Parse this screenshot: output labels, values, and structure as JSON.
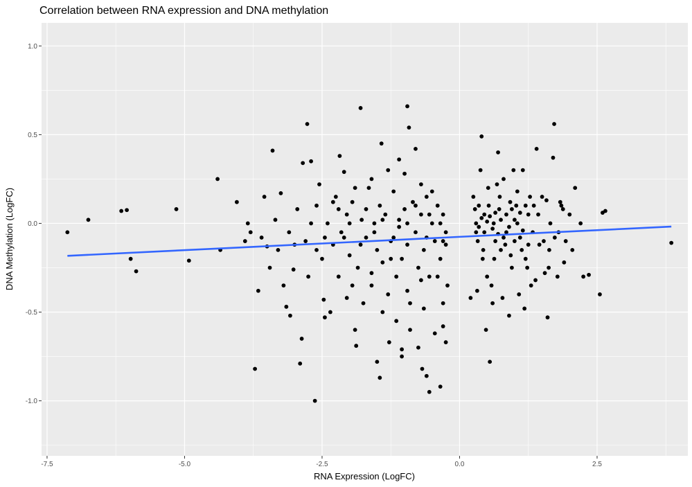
{
  "chart_data": {
    "type": "scatter",
    "title": "Correlation between RNA expression and DNA methylation",
    "xlabel": "RNA Expression (LogFC)",
    "ylabel": "DNA Methylation (LogFC)",
    "xlim": [
      -7.6,
      4.15
    ],
    "ylim": [
      -1.31,
      1.13
    ],
    "x_ticks": [
      -7.5,
      -5.0,
      -2.5,
      0.0,
      2.5
    ],
    "x_tick_labels": [
      "-7.5",
      "-5.0",
      "-2.5",
      "0.0",
      "2.5"
    ],
    "y_ticks": [
      -1.0,
      -0.5,
      0.0,
      0.5,
      1.0
    ],
    "y_tick_labels": [
      "-1.0",
      "-0.5",
      "0.0",
      "0.5",
      "1.0"
    ],
    "grid": true,
    "colors": {
      "panel_background": "#ebebeb",
      "grid_major": "#ffffff",
      "points": "#000000",
      "fit_line": "#3366ff",
      "tick_label": "#4d4d4d"
    },
    "fit_line": {
      "x": [
        -7.13,
        3.85
      ],
      "y": [
        -0.183,
        -0.018
      ]
    },
    "points": [
      [
        -7.13,
        -0.05
      ],
      [
        -6.75,
        0.02
      ],
      [
        -6.15,
        0.07
      ],
      [
        -6.05,
        0.075
      ],
      [
        -5.98,
        -0.2
      ],
      [
        -5.88,
        -0.27
      ],
      [
        -5.15,
        0.08
      ],
      [
        -4.92,
        -0.21
      ],
      [
        -4.4,
        0.25
      ],
      [
        -4.35,
        -0.15
      ],
      [
        -4.05,
        0.12
      ],
      [
        -3.72,
        -0.82
      ],
      [
        -3.66,
        -0.38
      ],
      [
        -3.55,
        0.15
      ],
      [
        -3.4,
        0.41
      ],
      [
        -3.3,
        -0.15
      ],
      [
        -3.2,
        -0.35
      ],
      [
        -3.15,
        -0.47
      ],
      [
        -3.08,
        -0.52
      ],
      [
        -3.02,
        -0.26
      ],
      [
        -2.9,
        -0.79
      ],
      [
        -2.87,
        -0.65
      ],
      [
        -2.85,
        0.34
      ],
      [
        -2.77,
        0.56
      ],
      [
        -2.63,
        -1.0
      ],
      [
        -2.7,
        0.35
      ],
      [
        -2.55,
        0.22
      ],
      [
        -2.47,
        -0.43
      ],
      [
        -2.45,
        -0.53
      ],
      [
        -2.18,
        0.38
      ],
      [
        -2.1,
        0.29
      ],
      [
        -1.8,
        0.65
      ],
      [
        -1.9,
        -0.6
      ],
      [
        -1.88,
        -0.69
      ],
      [
        -1.5,
        -0.78
      ],
      [
        -1.45,
        -0.87
      ],
      [
        -1.42,
        0.45
      ],
      [
        -1.28,
        -0.67
      ],
      [
        -1.1,
        0.36
      ],
      [
        -1.05,
        -0.71
      ],
      [
        -1.05,
        -0.75
      ],
      [
        -0.95,
        0.66
      ],
      [
        -0.92,
        0.54
      ],
      [
        -0.8,
        0.42
      ],
      [
        -0.75,
        -0.7
      ],
      [
        -0.68,
        -0.82
      ],
      [
        -0.6,
        -0.86
      ],
      [
        -0.55,
        -0.95
      ],
      [
        -0.35,
        -0.92
      ],
      [
        -0.3,
        -0.58
      ],
      [
        -0.25,
        -0.67
      ],
      [
        -3.6,
        -0.08
      ],
      [
        -3.45,
        -0.25
      ],
      [
        -3.35,
        0.02
      ],
      [
        -3.25,
        0.17
      ],
      [
        -3.1,
        -0.05
      ],
      [
        -2.95,
        0.08
      ],
      [
        -2.8,
        -0.1
      ],
      [
        -2.75,
        -0.3
      ],
      [
        -2.6,
        0.1
      ],
      [
        -2.5,
        -0.2
      ],
      [
        -2.4,
        0.0
      ],
      [
        -2.3,
        -0.12
      ],
      [
        -2.25,
        0.15
      ],
      [
        -2.2,
        -0.3
      ],
      [
        -2.15,
        -0.05
      ],
      [
        -2.05,
        0.05
      ],
      [
        -2.0,
        -0.18
      ],
      [
        -1.95,
        0.12
      ],
      [
        -1.85,
        -0.25
      ],
      [
        -1.78,
        0.02
      ],
      [
        -1.7,
        -0.08
      ],
      [
        -1.65,
        0.2
      ],
      [
        -1.6,
        -0.35
      ],
      [
        -1.55,
        0.0
      ],
      [
        -1.5,
        -0.15
      ],
      [
        -1.45,
        0.1
      ],
      [
        -1.4,
        -0.22
      ],
      [
        -1.35,
        0.05
      ],
      [
        -1.3,
        -0.4
      ],
      [
        -1.25,
        -0.1
      ],
      [
        -1.2,
        0.18
      ],
      [
        -1.15,
        -0.3
      ],
      [
        -1.1,
        0.02
      ],
      [
        -1.05,
        -0.2
      ],
      [
        -1.0,
        0.08
      ],
      [
        -0.95,
        -0.12
      ],
      [
        -0.9,
        -0.45
      ],
      [
        -0.85,
        0.12
      ],
      [
        -0.8,
        -0.05
      ],
      [
        -0.75,
        -0.25
      ],
      [
        -0.7,
        0.05
      ],
      [
        -0.65,
        -0.15
      ],
      [
        -0.6,
        0.15
      ],
      [
        -0.55,
        -0.3
      ],
      [
        -0.5,
        0.0
      ],
      [
        -0.45,
        -0.1
      ],
      [
        -0.4,
        0.1
      ],
      [
        -0.35,
        -0.2
      ],
      [
        -0.3,
        0.05
      ],
      [
        -0.25,
        -0.05
      ],
      [
        -0.22,
        -0.35
      ],
      [
        -2.35,
        -0.5
      ],
      [
        -2.05,
        -0.42
      ],
      [
        -1.75,
        -0.45
      ],
      [
        -1.4,
        -0.5
      ],
      [
        -1.15,
        -0.55
      ],
      [
        -0.9,
        -0.6
      ],
      [
        -0.65,
        -0.48
      ],
      [
        -0.45,
        -0.62
      ],
      [
        -0.3,
        -0.45
      ],
      [
        -1.9,
        0.2
      ],
      [
        -1.6,
        0.25
      ],
      [
        -1.3,
        0.3
      ],
      [
        -1.0,
        0.28
      ],
      [
        -0.7,
        0.22
      ],
      [
        -0.5,
        0.18
      ],
      [
        -2.6,
        -0.15
      ],
      [
        -2.1,
        -0.08
      ],
      [
        -1.8,
        -0.12
      ],
      [
        -1.55,
        -0.05
      ],
      [
        -1.2,
        -0.08
      ],
      [
        -0.95,
        0.0
      ],
      [
        -0.6,
        -0.08
      ],
      [
        -0.35,
        0.0
      ],
      [
        -3.0,
        -0.12
      ],
      [
        -2.7,
        0.0
      ],
      [
        -2.45,
        -0.08
      ],
      [
        -3.5,
        -0.13
      ],
      [
        -3.8,
        -0.05
      ],
      [
        -3.9,
        -0.1
      ],
      [
        -3.85,
        0.0
      ],
      [
        -2.2,
        0.08
      ],
      [
        -2.0,
        0.0
      ],
      [
        -1.7,
        0.08
      ],
      [
        -1.4,
        0.02
      ],
      [
        -1.1,
        -0.02
      ],
      [
        -0.8,
        0.1
      ],
      [
        -0.55,
        0.05
      ],
      [
        -0.3,
        -0.1
      ],
      [
        -2.3,
        0.12
      ],
      [
        -1.95,
        -0.35
      ],
      [
        -1.6,
        -0.28
      ],
      [
        -1.25,
        -0.2
      ],
      [
        -0.95,
        -0.38
      ],
      [
        -0.7,
        -0.32
      ],
      [
        -0.4,
        -0.3
      ],
      [
        -0.25,
        -0.12
      ],
      [
        0.2,
        -0.42
      ],
      [
        0.25,
        0.15
      ],
      [
        0.3,
        -0.05
      ],
      [
        0.35,
        0.1
      ],
      [
        0.4,
        0.49
      ],
      [
        0.42,
        -0.2
      ],
      [
        0.45,
        0.05
      ],
      [
        0.5,
        -0.3
      ],
      [
        0.52,
        0.2
      ],
      [
        0.55,
        -0.78
      ],
      [
        0.6,
        -0.45
      ],
      [
        0.62,
        0.0
      ],
      [
        0.65,
        -0.1
      ],
      [
        0.7,
        0.4
      ],
      [
        0.72,
        0.08
      ],
      [
        0.75,
        -0.15
      ],
      [
        0.8,
        0.25
      ],
      [
        0.85,
        -0.05
      ],
      [
        0.9,
        -0.52
      ],
      [
        0.92,
        0.12
      ],
      [
        0.95,
        -0.25
      ],
      [
        1.0,
        0.02
      ],
      [
        1.05,
        0.18
      ],
      [
        1.1,
        -0.08
      ],
      [
        1.15,
        0.3
      ],
      [
        1.2,
        -0.2
      ],
      [
        1.25,
        0.05
      ],
      [
        1.3,
        -0.35
      ],
      [
        1.35,
        0.1
      ],
      [
        1.4,
        0.42
      ],
      [
        1.45,
        -0.12
      ],
      [
        1.5,
        0.15
      ],
      [
        1.55,
        -0.28
      ],
      [
        1.6,
        -0.53
      ],
      [
        1.65,
        0.0
      ],
      [
        1.7,
        0.37
      ],
      [
        1.72,
        0.56
      ],
      [
        1.8,
        -0.05
      ],
      [
        1.85,
        0.1
      ],
      [
        1.9,
        -0.22
      ],
      [
        2.0,
        0.05
      ],
      [
        2.05,
        -0.15
      ],
      [
        2.1,
        0.2
      ],
      [
        2.2,
        0.0
      ],
      [
        2.25,
        -0.3
      ],
      [
        2.35,
        -0.29
      ],
      [
        2.55,
        -0.4
      ],
      [
        2.6,
        0.06
      ],
      [
        2.65,
        0.07
      ],
      [
        3.85,
        -0.11
      ],
      [
        0.3,
        0.0
      ],
      [
        0.35,
        -0.02
      ],
      [
        0.4,
        0.03
      ],
      [
        0.45,
        -0.05
      ],
      [
        0.5,
        0.01
      ],
      [
        0.55,
        0.04
      ],
      [
        0.6,
        -0.03
      ],
      [
        0.65,
        0.06
      ],
      [
        0.7,
        -0.06
      ],
      [
        0.75,
        0.02
      ],
      [
        0.8,
        -0.08
      ],
      [
        0.85,
        0.05
      ],
      [
        0.9,
        -0.02
      ],
      [
        0.95,
        0.08
      ],
      [
        1.0,
        -0.1
      ],
      [
        1.05,
        0.0
      ],
      [
        1.1,
        0.06
      ],
      [
        1.15,
        -0.04
      ],
      [
        1.2,
        0.1
      ],
      [
        1.25,
        -0.12
      ],
      [
        0.32,
        -0.38
      ],
      [
        0.48,
        -0.6
      ],
      [
        0.58,
        -0.35
      ],
      [
        0.78,
        -0.42
      ],
      [
        1.08,
        -0.4
      ],
      [
        1.18,
        -0.48
      ],
      [
        1.38,
        -0.32
      ],
      [
        1.62,
        -0.25
      ],
      [
        1.78,
        -0.3
      ],
      [
        0.38,
        0.3
      ],
      [
        0.68,
        0.22
      ],
      [
        0.98,
        0.3
      ],
      [
        1.28,
        0.15
      ],
      [
        1.58,
        0.13
      ],
      [
        1.88,
        0.08
      ],
      [
        0.28,
        0.08
      ],
      [
        0.33,
        -0.1
      ],
      [
        0.43,
        -0.15
      ],
      [
        0.53,
        0.1
      ],
      [
        0.63,
        -0.2
      ],
      [
        0.73,
        0.15
      ],
      [
        0.83,
        -0.12
      ],
      [
        0.93,
        -0.18
      ],
      [
        1.03,
        0.1
      ],
      [
        1.13,
        -0.15
      ],
      [
        1.23,
        -0.25
      ],
      [
        1.33,
        -0.05
      ],
      [
        1.43,
        0.05
      ],
      [
        1.53,
        -0.1
      ],
      [
        1.63,
        -0.15
      ],
      [
        1.73,
        -0.08
      ],
      [
        1.83,
        0.12
      ],
      [
        1.93,
        -0.1
      ]
    ]
  }
}
